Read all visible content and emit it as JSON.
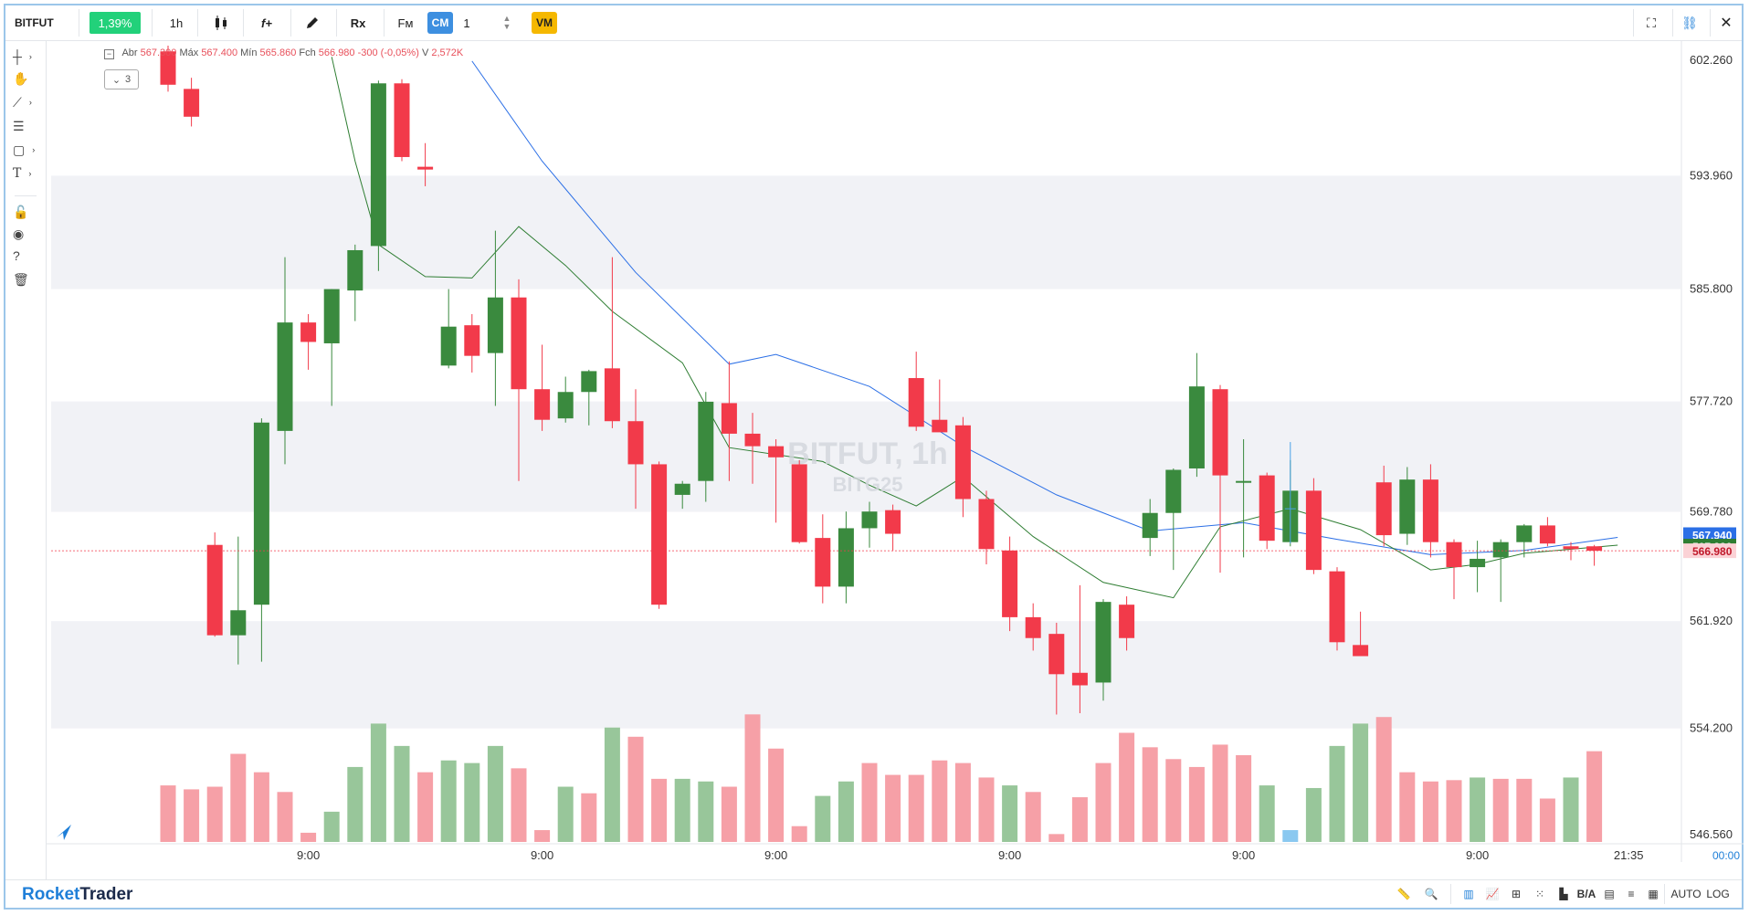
{
  "toolbar": {
    "symbol": "BITFUT",
    "change": "1,39%",
    "timeframe": "1h",
    "cm_label": "CM",
    "cm_value": "1",
    "vm_label": "VM",
    "fm_label": "Fм",
    "rx_label": "Rx",
    "fx_label": "f+"
  },
  "legend": {
    "open_label": "Abr",
    "open": "567.300",
    "high_label": "Máx",
    "high": "567.400",
    "low_label": "Mín",
    "low": "565.860",
    "close_label": "Fch",
    "close": "566.980",
    "change": "-300 (-0,05%)",
    "volume_label": "V",
    "volume": "2,572K",
    "collapse": "3"
  },
  "watermark": {
    "title": "BITFUT, 1h",
    "subtitle": "BITG25"
  },
  "price_axis": {
    "labels": [
      "602.260",
      "593.960",
      "585.800",
      "577.720",
      "569.780",
      "561.920",
      "554.200",
      "546.560"
    ],
    "current_price": "566.980",
    "ma_blue_value": "567.940",
    "ma_green_value": "567.380"
  },
  "time_axis": {
    "labels": [
      "9:00",
      "9:00",
      "9:00",
      "9:00",
      "9:00",
      "9:00"
    ],
    "last_time": "21:35",
    "countdown": "00:00"
  },
  "brand": {
    "part1": "Rocket",
    "part2": "Trader"
  },
  "bottom": {
    "auto": "AUTO",
    "log": "LOG",
    "ba": "B/A"
  },
  "colors": {
    "up": "#3a8a3e",
    "down": "#f23a4a",
    "vol_up": "#98c69a",
    "vol_down": "#f6a0a7",
    "vol_highlight": "#8ac8f0",
    "ma_blue": "#2b6fe6",
    "ma_green": "#2e7d32",
    "accent": "#1f7fd8"
  },
  "chart_data": {
    "type": "candlestick",
    "title": "BITFUT, 1h",
    "ylim": [
      546.56,
      602.26
    ],
    "candles": [
      {
        "o": 602.9,
        "h": 603.4,
        "l": 600.0,
        "c": 600.5
      },
      {
        "o": 600.2,
        "h": 601.0,
        "l": 597.5,
        "c": 598.2
      },
      {
        "o": 567.4,
        "h": 568.3,
        "l": 560.8,
        "c": 560.9
      },
      {
        "o": 560.9,
        "h": 568.0,
        "l": 558.8,
        "c": 562.7
      },
      {
        "o": 563.1,
        "h": 576.5,
        "l": 559.0,
        "c": 576.2
      },
      {
        "o": 575.6,
        "h": 588.1,
        "l": 573.2,
        "c": 583.4
      },
      {
        "o": 583.4,
        "h": 584.0,
        "l": 580.0,
        "c": 582.0
      },
      {
        "o": 581.9,
        "h": 585.8,
        "l": 577.4,
        "c": 585.8
      },
      {
        "o": 585.7,
        "h": 589.0,
        "l": 583.5,
        "c": 588.6
      },
      {
        "o": 588.9,
        "h": 600.8,
        "l": 587.1,
        "c": 600.6
      },
      {
        "o": 600.6,
        "h": 600.9,
        "l": 595.0,
        "c": 595.3
      },
      {
        "o": 594.6,
        "h": 596.3,
        "l": 593.2,
        "c": 594.4
      },
      {
        "o": 580.3,
        "h": 585.8,
        "l": 580.1,
        "c": 583.1
      },
      {
        "o": 583.2,
        "h": 584.0,
        "l": 579.8,
        "c": 581.0
      },
      {
        "o": 581.2,
        "h": 590.0,
        "l": 577.4,
        "c": 585.2
      },
      {
        "o": 585.2,
        "h": 586.5,
        "l": 572.0,
        "c": 578.6
      },
      {
        "o": 578.6,
        "h": 581.8,
        "l": 575.6,
        "c": 576.4
      },
      {
        "o": 576.5,
        "h": 579.5,
        "l": 576.2,
        "c": 578.4
      },
      {
        "o": 578.4,
        "h": 580.0,
        "l": 576.0,
        "c": 579.9
      },
      {
        "o": 580.1,
        "h": 588.1,
        "l": 575.8,
        "c": 576.3
      },
      {
        "o": 576.3,
        "h": 578.6,
        "l": 570.0,
        "c": 573.2
      },
      {
        "o": 573.2,
        "h": 573.4,
        "l": 562.8,
        "c": 563.1
      },
      {
        "o": 571.0,
        "h": 572.0,
        "l": 570.0,
        "c": 571.8
      },
      {
        "o": 572.0,
        "h": 578.4,
        "l": 570.5,
        "c": 577.7
      },
      {
        "o": 577.6,
        "h": 580.6,
        "l": 572.0,
        "c": 575.4
      },
      {
        "o": 575.4,
        "h": 576.9,
        "l": 571.8,
        "c": 574.5
      },
      {
        "o": 574.5,
        "h": 575.0,
        "l": 569.0,
        "c": 573.7
      },
      {
        "o": 573.2,
        "h": 573.5,
        "l": 567.5,
        "c": 567.6
      },
      {
        "o": 567.9,
        "h": 569.6,
        "l": 563.2,
        "c": 564.4
      },
      {
        "o": 564.4,
        "h": 569.8,
        "l": 563.2,
        "c": 568.6
      },
      {
        "o": 568.6,
        "h": 570.5,
        "l": 567.2,
        "c": 569.8
      },
      {
        "o": 569.9,
        "h": 570.3,
        "l": 567.0,
        "c": 568.2
      },
      {
        "o": 579.4,
        "h": 581.3,
        "l": 575.6,
        "c": 575.9
      },
      {
        "o": 576.4,
        "h": 579.3,
        "l": 575.6,
        "c": 575.5
      },
      {
        "o": 576.0,
        "h": 576.6,
        "l": 569.4,
        "c": 570.7
      },
      {
        "o": 570.7,
        "h": 571.3,
        "l": 566.0,
        "c": 567.1
      },
      {
        "o": 567.0,
        "h": 568.0,
        "l": 561.2,
        "c": 562.2
      },
      {
        "o": 562.2,
        "h": 563.2,
        "l": 559.8,
        "c": 560.7
      },
      {
        "o": 561.0,
        "h": 561.8,
        "l": 555.2,
        "c": 558.1
      },
      {
        "o": 558.2,
        "h": 564.5,
        "l": 555.3,
        "c": 557.3
      },
      {
        "o": 557.5,
        "h": 563.5,
        "l": 556.2,
        "c": 563.3
      },
      {
        "o": 563.1,
        "h": 563.7,
        "l": 559.8,
        "c": 560.7
      },
      {
        "o": 567.9,
        "h": 570.7,
        "l": 566.6,
        "c": 569.7
      },
      {
        "o": 569.7,
        "h": 572.9,
        "l": 565.6,
        "c": 572.8
      },
      {
        "o": 572.9,
        "h": 581.2,
        "l": 572.3,
        "c": 578.8
      },
      {
        "o": 578.6,
        "h": 578.9,
        "l": 565.4,
        "c": 572.4
      },
      {
        "o": 572.0,
        "h": 575.0,
        "l": 566.5,
        "c": 572.0
      },
      {
        "o": 572.4,
        "h": 572.6,
        "l": 567.1,
        "c": 567.7
      },
      {
        "o": 567.6,
        "h": 573.5,
        "l": 567.3,
        "c": 571.3
      },
      {
        "o": 571.3,
        "h": 572.2,
        "l": 565.3,
        "c": 565.6
      },
      {
        "o": 565.5,
        "h": 565.8,
        "l": 559.8,
        "c": 560.4
      },
      {
        "o": 560.2,
        "h": 562.6,
        "l": 559.4,
        "c": 559.4
      },
      {
        "o": 571.9,
        "h": 573.1,
        "l": 567.3,
        "c": 568.1
      },
      {
        "o": 568.2,
        "h": 573.0,
        "l": 567.4,
        "c": 572.1
      },
      {
        "o": 572.1,
        "h": 573.2,
        "l": 566.5,
        "c": 567.6
      },
      {
        "o": 567.6,
        "h": 567.8,
        "l": 563.5,
        "c": 565.8
      },
      {
        "o": 565.8,
        "h": 567.7,
        "l": 564.0,
        "c": 566.4
      },
      {
        "o": 566.5,
        "h": 567.8,
        "l": 563.3,
        "c": 567.6
      },
      {
        "o": 567.6,
        "h": 568.9,
        "l": 566.5,
        "c": 568.8
      },
      {
        "o": 568.8,
        "h": 569.4,
        "l": 567.3,
        "c": 567.5
      },
      {
        "o": 567.3,
        "h": 567.6,
        "l": 566.3,
        "c": 567.1
      },
      {
        "o": 567.3,
        "h": 567.4,
        "l": 565.9,
        "c": 566.98
      }
    ],
    "ma_blue": [
      {
        "i": 13,
        "v": 602.2
      },
      {
        "i": 16,
        "v": 595.0
      },
      {
        "i": 20,
        "v": 587.0
      },
      {
        "i": 24,
        "v": 580.4
      },
      {
        "i": 26,
        "v": 581.1
      },
      {
        "i": 30,
        "v": 578.8
      },
      {
        "i": 34,
        "v": 574.5
      },
      {
        "i": 38,
        "v": 571.0
      },
      {
        "i": 42,
        "v": 568.4
      },
      {
        "i": 46,
        "v": 569.0
      },
      {
        "i": 50,
        "v": 567.8
      },
      {
        "i": 54,
        "v": 566.7
      },
      {
        "i": 58,
        "v": 567.0
      },
      {
        "i": 62,
        "v": 567.94
      }
    ],
    "ma_green": [
      {
        "i": 7,
        "v": 602.5
      },
      {
        "i": 8,
        "v": 595.0
      },
      {
        "i": 9,
        "v": 589.0
      },
      {
        "i": 11,
        "v": 586.7
      },
      {
        "i": 13,
        "v": 586.6
      },
      {
        "i": 15,
        "v": 590.3
      },
      {
        "i": 17,
        "v": 587.5
      },
      {
        "i": 19,
        "v": 584.2
      },
      {
        "i": 22,
        "v": 580.5
      },
      {
        "i": 24,
        "v": 574.4
      },
      {
        "i": 28,
        "v": 573.4
      },
      {
        "i": 30,
        "v": 571.7
      },
      {
        "i": 32,
        "v": 570.2
      },
      {
        "i": 34,
        "v": 572.3
      },
      {
        "i": 37,
        "v": 568.0
      },
      {
        "i": 40,
        "v": 564.7
      },
      {
        "i": 43,
        "v": 563.6
      },
      {
        "i": 45,
        "v": 568.7
      },
      {
        "i": 48,
        "v": 570.0
      },
      {
        "i": 51,
        "v": 568.5
      },
      {
        "i": 54,
        "v": 565.6
      },
      {
        "i": 56,
        "v": 566.0
      },
      {
        "i": 58,
        "v": 566.8
      },
      {
        "i": 62,
        "v": 567.38
      }
    ],
    "volume": [
      {
        "i": 0,
        "v": 43,
        "up": false
      },
      {
        "i": 1,
        "v": 40,
        "up": false
      },
      {
        "i": 2,
        "v": 42,
        "up": false
      },
      {
        "i": 3,
        "v": 67,
        "up": false
      },
      {
        "i": 4,
        "v": 53,
        "up": false
      },
      {
        "i": 5,
        "v": 38,
        "up": false
      },
      {
        "i": 6,
        "v": 7,
        "up": false
      },
      {
        "i": 7,
        "v": 23,
        "up": true
      },
      {
        "i": 8,
        "v": 57,
        "up": true
      },
      {
        "i": 9,
        "v": 90,
        "up": true
      },
      {
        "i": 10,
        "v": 73,
        "up": true
      },
      {
        "i": 11,
        "v": 53,
        "up": false
      },
      {
        "i": 12,
        "v": 62,
        "up": true
      },
      {
        "i": 13,
        "v": 60,
        "up": true
      },
      {
        "i": 14,
        "v": 73,
        "up": true
      },
      {
        "i": 15,
        "v": 56,
        "up": false
      },
      {
        "i": 16,
        "v": 9,
        "up": false
      },
      {
        "i": 17,
        "v": 42,
        "up": true
      },
      {
        "i": 18,
        "v": 37,
        "up": false
      },
      {
        "i": 19,
        "v": 87,
        "up": true
      },
      {
        "i": 20,
        "v": 80,
        "up": false
      },
      {
        "i": 21,
        "v": 48,
        "up": false
      },
      {
        "i": 22,
        "v": 48,
        "up": true
      },
      {
        "i": 23,
        "v": 46,
        "up": true
      },
      {
        "i": 24,
        "v": 42,
        "up": false
      },
      {
        "i": 25,
        "v": 97,
        "up": false
      },
      {
        "i": 26,
        "v": 71,
        "up": false
      },
      {
        "i": 27,
        "v": 12,
        "up": false
      },
      {
        "i": 28,
        "v": 35,
        "up": true
      },
      {
        "i": 29,
        "v": 46,
        "up": true
      },
      {
        "i": 30,
        "v": 60,
        "up": false
      },
      {
        "i": 31,
        "v": 51,
        "up": false
      },
      {
        "i": 32,
        "v": 51,
        "up": false
      },
      {
        "i": 33,
        "v": 62,
        "up": false
      },
      {
        "i": 34,
        "v": 60,
        "up": false
      },
      {
        "i": 35,
        "v": 49,
        "up": false
      },
      {
        "i": 36,
        "v": 43,
        "up": true
      },
      {
        "i": 37,
        "v": 38,
        "up": false
      },
      {
        "i": 38,
        "v": 6,
        "up": false
      },
      {
        "i": 39,
        "v": 34,
        "up": false
      },
      {
        "i": 40,
        "v": 60,
        "up": false
      },
      {
        "i": 41,
        "v": 83,
        "up": false
      },
      {
        "i": 42,
        "v": 72,
        "up": false
      },
      {
        "i": 43,
        "v": 63,
        "up": false
      },
      {
        "i": 44,
        "v": 57,
        "up": false
      },
      {
        "i": 45,
        "v": 74,
        "up": false
      },
      {
        "i": 46,
        "v": 66,
        "up": false
      },
      {
        "i": 47,
        "v": 43,
        "up": true
      },
      {
        "i": 48,
        "v": 9,
        "up": true
      },
      {
        "i": 49,
        "v": 41,
        "up": true
      },
      {
        "i": 50,
        "v": 73,
        "up": true
      },
      {
        "i": 51,
        "v": 90,
        "up": true
      },
      {
        "i": 52,
        "v": 95,
        "up": false
      },
      {
        "i": 53,
        "v": 53,
        "up": false
      },
      {
        "i": 54,
        "v": 46,
        "up": false
      },
      {
        "i": 55,
        "v": 47,
        "up": false
      },
      {
        "i": 56,
        "v": 49,
        "up": true
      },
      {
        "i": 57,
        "v": 48,
        "up": false
      },
      {
        "i": 58,
        "v": 48,
        "up": false
      },
      {
        "i": 59,
        "v": 33,
        "up": false
      },
      {
        "i": 60,
        "v": 49,
        "up": true
      },
      {
        "i": 61,
        "v": 69,
        "up": false
      }
    ]
  }
}
